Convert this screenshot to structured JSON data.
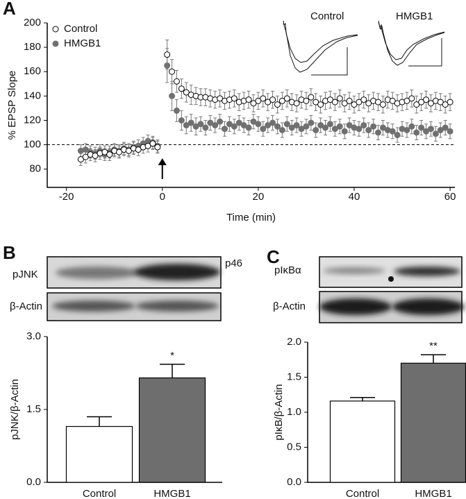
{
  "chart_data": [
    {
      "type": "scatter",
      "panel": "A",
      "xlabel": "Time (min)",
      "ylabel": "% EPSP Slope",
      "x": [
        -17,
        -16,
        -15,
        -14,
        -13,
        -12,
        -11,
        -10,
        -9,
        -8,
        -7,
        -6,
        -5,
        -4,
        -3,
        -2,
        -1,
        1,
        2,
        3,
        4,
        5,
        6,
        7,
        8,
        9,
        10,
        11,
        12,
        13,
        14,
        15,
        16,
        17,
        18,
        19,
        20,
        21,
        22,
        23,
        24,
        25,
        26,
        27,
        28,
        29,
        30,
        31,
        32,
        33,
        34,
        35,
        36,
        37,
        38,
        39,
        40,
        41,
        42,
        43,
        44,
        45,
        46,
        47,
        48,
        49,
        50,
        51,
        52,
        53,
        54,
        55,
        56,
        57,
        58,
        59,
        60
      ],
      "series": [
        {
          "name": "Control",
          "color": "#ffffff",
          "values": [
            88,
            90,
            92,
            91,
            93,
            94,
            92,
            95,
            94,
            96,
            95,
            97,
            96,
            98,
            99,
            101,
            98,
            174,
            160,
            152,
            146,
            143,
            141,
            140,
            139,
            139,
            138,
            137,
            138,
            136,
            137,
            138,
            135,
            136,
            137,
            134,
            136,
            138,
            135,
            137,
            133,
            136,
            138,
            135,
            134,
            137,
            136,
            139,
            135,
            133,
            136,
            137,
            135,
            138,
            134,
            136,
            133,
            135,
            137,
            134,
            136,
            135,
            133,
            137,
            136,
            134,
            135,
            136,
            138,
            133,
            135,
            137,
            134,
            136,
            135,
            133,
            135
          ],
          "errors": [
            5,
            5,
            5,
            5,
            5,
            5,
            5,
            5,
            5,
            5,
            5,
            5,
            5,
            5,
            5,
            5,
            5,
            12,
            10,
            9,
            8,
            8,
            8,
            7,
            7,
            7,
            7,
            7,
            7,
            7,
            7,
            7,
            7,
            7,
            7,
            7,
            7,
            7,
            7,
            7,
            7,
            7,
            7,
            7,
            7,
            7,
            7,
            7,
            7,
            7,
            7,
            7,
            7,
            7,
            7,
            7,
            7,
            7,
            7,
            7,
            7,
            7,
            7,
            7,
            7,
            7,
            7,
            7,
            7,
            7,
            7,
            7,
            7,
            7,
            7,
            7,
            7
          ]
        },
        {
          "name": "HMGB1",
          "color": "#707070",
          "values": [
            95,
            96,
            94,
            93,
            95,
            92,
            94,
            96,
            95,
            97,
            96,
            98,
            99,
            101,
            103,
            102,
            99,
            165,
            140,
            128,
            120,
            116,
            118,
            115,
            117,
            114,
            118,
            116,
            119,
            113,
            117,
            115,
            118,
            116,
            114,
            119,
            117,
            113,
            116,
            118,
            115,
            112,
            117,
            114,
            116,
            113,
            115,
            118,
            112,
            116,
            114,
            117,
            113,
            115,
            111,
            116,
            114,
            113,
            116,
            112,
            115,
            110,
            114,
            112,
            111,
            108,
            113,
            112,
            115,
            110,
            114,
            111,
            113,
            109,
            112,
            114,
            111
          ],
          "errors": [
            5,
            5,
            5,
            5,
            5,
            5,
            5,
            5,
            5,
            5,
            5,
            5,
            5,
            5,
            5,
            5,
            5,
            14,
            12,
            9,
            8,
            7,
            7,
            7,
            6,
            6,
            6,
            6,
            6,
            6,
            6,
            6,
            6,
            6,
            6,
            6,
            6,
            6,
            6,
            6,
            6,
            6,
            6,
            6,
            6,
            6,
            6,
            6,
            6,
            6,
            6,
            6,
            6,
            6,
            6,
            6,
            6,
            6,
            6,
            6,
            6,
            6,
            6,
            6,
            6,
            6,
            6,
            6,
            6,
            6,
            6,
            6,
            6,
            6,
            6,
            6,
            6
          ]
        }
      ],
      "xlim": [
        -24,
        61
      ],
      "ylim": [
        65,
        200
      ],
      "xticks": [
        -20,
        0,
        20,
        40,
        60
      ],
      "yticks": [
        80,
        100,
        120,
        140,
        160,
        180,
        200
      ],
      "reference_line": 100,
      "arrow_x": 0,
      "legend": "top-left",
      "inset_labels": [
        "Control",
        "HMGB1"
      ]
    },
    {
      "type": "bar",
      "panel": "B",
      "blot_labels": [
        "pJNK",
        "p46",
        "β-Actin"
      ],
      "ylabel": "pJNK/β-Actin",
      "categories": [
        "Control",
        "HMGB1"
      ],
      "values": [
        1.15,
        2.15
      ],
      "errors": [
        0.2,
        0.28
      ],
      "colors": [
        "#ffffff",
        "#6e6e6e"
      ],
      "ylim": [
        0,
        3
      ],
      "yticks": [
        {
          "value": 0,
          "label": "0.0"
        },
        {
          "value": 1.5,
          "label": "1.5"
        },
        {
          "value": 3,
          "label": "3.0"
        }
      ],
      "annotation": "*"
    },
    {
      "type": "bar",
      "panel": "C",
      "blot_labels": [
        "pIκBα",
        "β-Actin"
      ],
      "ylabel": "pIκB/β-Actin",
      "categories": [
        "Control",
        "HMGB1"
      ],
      "values": [
        1.16,
        1.7
      ],
      "errors": [
        0.05,
        0.12
      ],
      "colors": [
        "#ffffff",
        "#6e6e6e"
      ],
      "ylim": [
        0,
        2
      ],
      "yticks": [
        {
          "value": 0,
          "label": "0.0"
        },
        {
          "value": 0.5,
          "label": "0.5"
        },
        {
          "value": 1,
          "label": "1.0"
        },
        {
          "value": 1.5,
          "label": "1.5"
        },
        {
          "value": 2,
          "label": "2.0"
        }
      ],
      "annotation": "**"
    }
  ]
}
